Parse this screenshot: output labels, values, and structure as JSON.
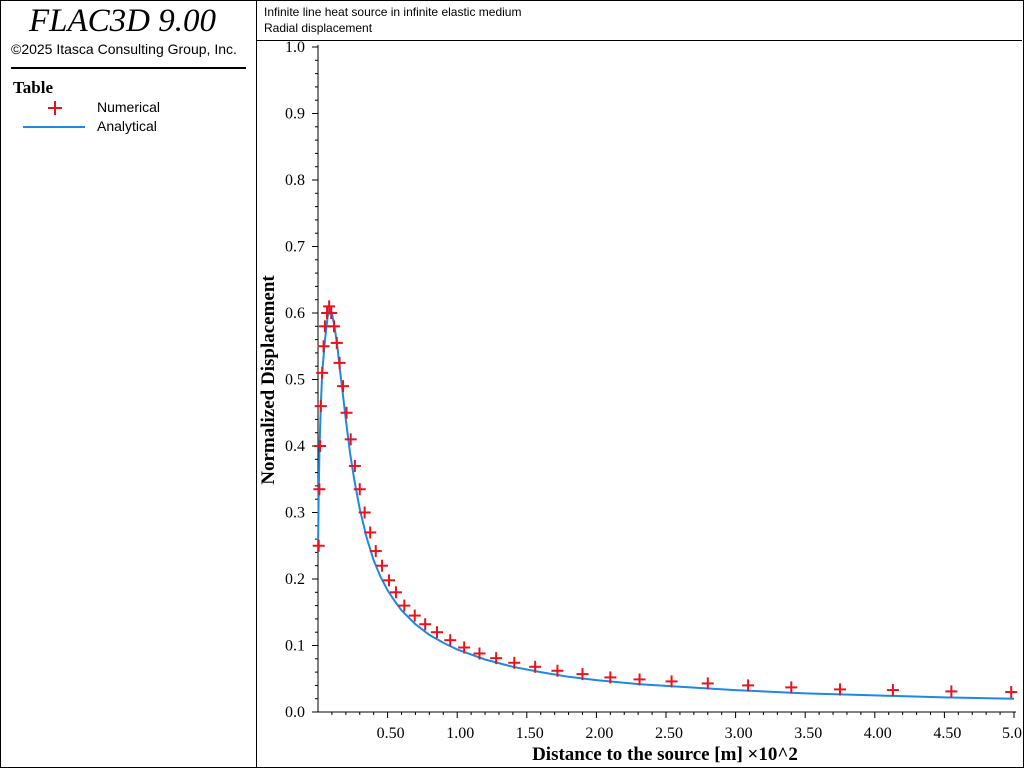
{
  "app": {
    "title": "FLAC3D 9.00",
    "copyright": "©2025 Itasca Consulting Group, Inc."
  },
  "legend": {
    "title": "Table",
    "items": [
      {
        "label": "Numerical",
        "marker": "plus",
        "color": "#e8141c"
      },
      {
        "label": "Analytical",
        "marker": "line",
        "color": "#1e88e5"
      }
    ]
  },
  "header": {
    "line1": "Infinite line heat source in infinite elastic medium",
    "line2": "Radial displacement"
  },
  "chart_data": {
    "type": "line",
    "xlabel": "Distance to the source [m] ×10^2",
    "ylabel": "Normalized Displacement",
    "xlim": [
      0,
      5.0
    ],
    "ylim": [
      0,
      1.0
    ],
    "x_ticks": [
      "0.50",
      "1.00",
      "1.50",
      "2.00",
      "2.50",
      "3.00",
      "3.50",
      "4.00",
      "4.50",
      "5.0"
    ],
    "y_ticks": [
      "0.0",
      "0.1",
      "0.2",
      "0.3",
      "0.4",
      "0.5",
      "0.6",
      "0.7",
      "0.8",
      "0.9",
      "1.0"
    ],
    "grid": false,
    "series": [
      {
        "name": "Numerical",
        "style": "markers",
        "color": "#e8141c",
        "x": [
          0.005,
          0.01,
          0.015,
          0.02,
          0.03,
          0.04,
          0.05,
          0.065,
          0.08,
          0.095,
          0.115,
          0.135,
          0.155,
          0.18,
          0.205,
          0.235,
          0.265,
          0.3,
          0.335,
          0.375,
          0.415,
          0.46,
          0.51,
          0.56,
          0.62,
          0.695,
          0.77,
          0.855,
          0.95,
          1.05,
          1.16,
          1.28,
          1.41,
          1.56,
          1.72,
          1.9,
          2.1,
          2.31,
          2.54,
          2.8,
          3.09,
          3.4,
          3.75,
          4.13,
          4.55,
          4.98
        ],
        "y": [
          0.25,
          0.335,
          0.4,
          0.46,
          0.51,
          0.55,
          0.58,
          0.6,
          0.61,
          0.6,
          0.58,
          0.555,
          0.525,
          0.49,
          0.45,
          0.41,
          0.37,
          0.335,
          0.3,
          0.27,
          0.242,
          0.22,
          0.198,
          0.18,
          0.16,
          0.145,
          0.132,
          0.12,
          0.108,
          0.097,
          0.088,
          0.081,
          0.074,
          0.068,
          0.062,
          0.057,
          0.052,
          0.049,
          0.046,
          0.043,
          0.04,
          0.037,
          0.034,
          0.033,
          0.031,
          0.03
        ]
      },
      {
        "name": "Analytical",
        "style": "line",
        "color": "#1e88e5",
        "x": [
          0.0,
          0.005,
          0.01,
          0.02,
          0.03,
          0.05,
          0.07,
          0.09,
          0.1,
          0.12,
          0.14,
          0.16,
          0.18,
          0.2,
          0.23,
          0.26,
          0.3,
          0.35,
          0.4,
          0.45,
          0.5,
          0.55,
          0.6,
          0.7,
          0.8,
          0.9,
          1.0,
          1.2,
          1.4,
          1.6,
          1.8,
          2.0,
          2.3,
          2.6,
          3.0,
          3.5,
          4.0,
          4.5,
          5.0
        ],
        "y": [
          0.24,
          0.33,
          0.39,
          0.46,
          0.51,
          0.56,
          0.595,
          0.605,
          0.6,
          0.578,
          0.548,
          0.51,
          0.475,
          0.44,
          0.39,
          0.35,
          0.305,
          0.262,
          0.228,
          0.203,
          0.183,
          0.167,
          0.153,
          0.132,
          0.116,
          0.104,
          0.094,
          0.079,
          0.068,
          0.06,
          0.053,
          0.048,
          0.042,
          0.038,
          0.033,
          0.028,
          0.025,
          0.022,
          0.02
        ]
      }
    ]
  }
}
